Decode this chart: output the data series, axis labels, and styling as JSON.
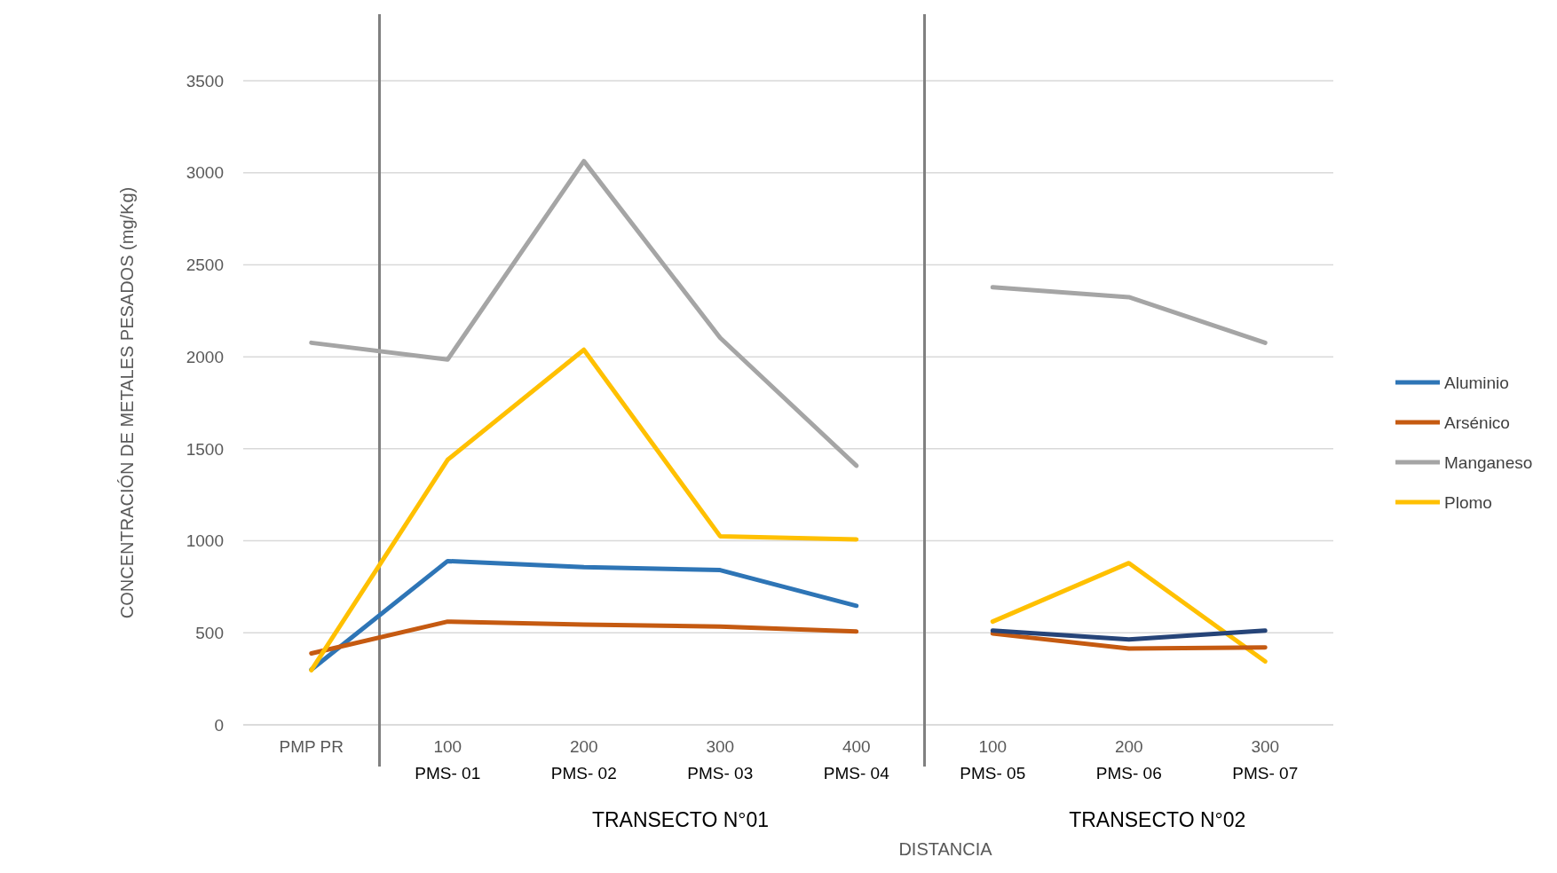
{
  "chart_data": {
    "type": "line",
    "xlabel": "DISTANCIA",
    "ylabel": "CONCENTRACIÓN DE METALES PESADOS (mg/Kg)",
    "categories": [
      "PMP PR",
      "100\nPMS- 01",
      "200\nPMS- 02",
      "300\nPMS- 03",
      "400\nPMS- 04",
      "100\nPMS- 05",
      "200\nPMS- 06",
      "300\nPMS- 07"
    ],
    "series": [
      {
        "name": "Aluminio",
        "color": "#2e75b6",
        "values": [
          300,
          890,
          857,
          841,
          647,
          null,
          null,
          null
        ]
      },
      {
        "name": "Arsénico",
        "color": "#c55a11",
        "values": [
          388,
          561,
          545,
          534,
          507,
          null,
          null,
          null
        ]
      },
      {
        "name": "Manganeso",
        "color": "#a5a5a5",
        "values": [
          2076,
          1985,
          3063,
          2103,
          1408,
          null,
          null,
          null
        ]
      },
      {
        "name": "Plomo",
        "color": "#ffc000",
        "values": [
          297,
          1440,
          2038,
          1025,
          1008,
          null,
          null,
          null
        ]
      },
      {
        "color": "#a5a5a5",
        "values": [
          null,
          null,
          null,
          null,
          null,
          2378,
          2324,
          2076
        ]
      },
      {
        "color": "#ffc000",
        "values": [
          null,
          null,
          null,
          null,
          null,
          561,
          879,
          345
        ]
      },
      {
        "color": "#c55a11",
        "values": [
          null,
          null,
          null,
          null,
          null,
          496,
          415,
          421
        ]
      },
      {
        "color": "#264478",
        "values": [
          null,
          null,
          null,
          null,
          null,
          512,
          464,
          512
        ]
      }
    ],
    "ylim": [
      0,
      3500
    ],
    "yticks": [
      0,
      500,
      1000,
      1500,
      2000,
      2500,
      3000,
      3500
    ],
    "grid": "y",
    "legend": "right",
    "marker": "none",
    "line_style": "solid",
    "annotations": [
      "TRANSECTO N°01",
      "TRANSECTO N°02"
    ]
  }
}
